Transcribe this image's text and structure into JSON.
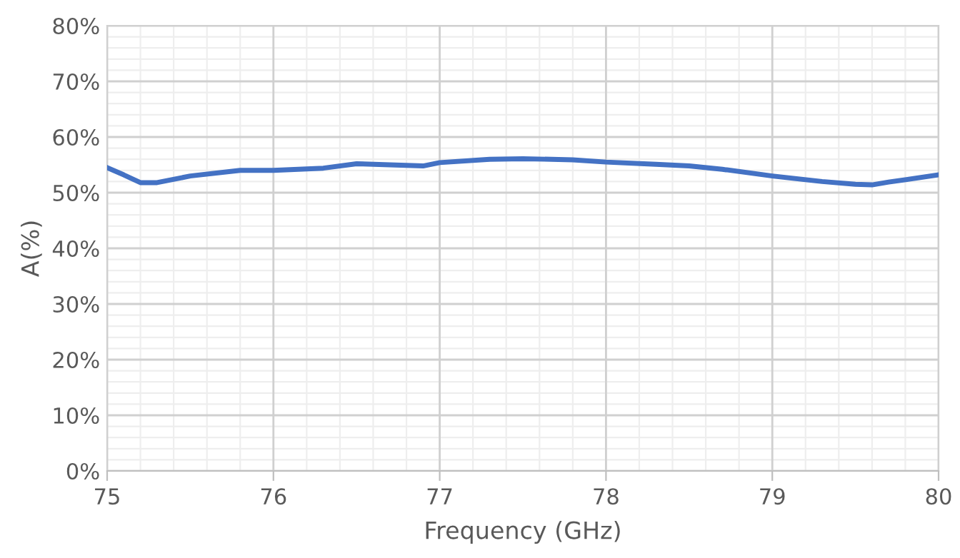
{
  "chart_data": {
    "type": "line",
    "xlabel": "Frequency (GHz)",
    "ylabel": "A(%)",
    "x": [
      75,
      75.1,
      75.2,
      75.3,
      75.5,
      75.8,
      76.0,
      76.3,
      76.5,
      76.7,
      76.9,
      77.0,
      77.3,
      77.5,
      77.8,
      78.0,
      78.3,
      78.5,
      78.7,
      79.0,
      79.3,
      79.5,
      79.6,
      79.7,
      80.0
    ],
    "series": [
      {
        "color": "#4472c4",
        "values": [
          54.5,
          53.2,
          51.8,
          51.8,
          53.0,
          54.0,
          54.0,
          54.4,
          55.2,
          55.0,
          54.8,
          55.4,
          56.0,
          56.1,
          55.9,
          55.5,
          55.1,
          54.8,
          54.2,
          53.0,
          52.0,
          51.5,
          51.4,
          51.9,
          53.2
        ]
      }
    ],
    "xlim": [
      75,
      80
    ],
    "ylim": [
      0,
      80
    ],
    "xticks": [
      75,
      76,
      77,
      78,
      79,
      80
    ],
    "yticks": [
      {
        "value": 0,
        "label": "0%"
      },
      {
        "value": 10,
        "label": "10%"
      },
      {
        "value": 20,
        "label": "20%"
      },
      {
        "value": 30,
        "label": "30%"
      },
      {
        "value": 40,
        "label": "40%"
      },
      {
        "value": 50,
        "label": "50%"
      },
      {
        "value": 60,
        "label": "60%"
      },
      {
        "value": 70,
        "label": "70%"
      },
      {
        "value": 80,
        "label": "80%"
      }
    ],
    "grid": true,
    "marker": "none",
    "line_style": "solid"
  }
}
